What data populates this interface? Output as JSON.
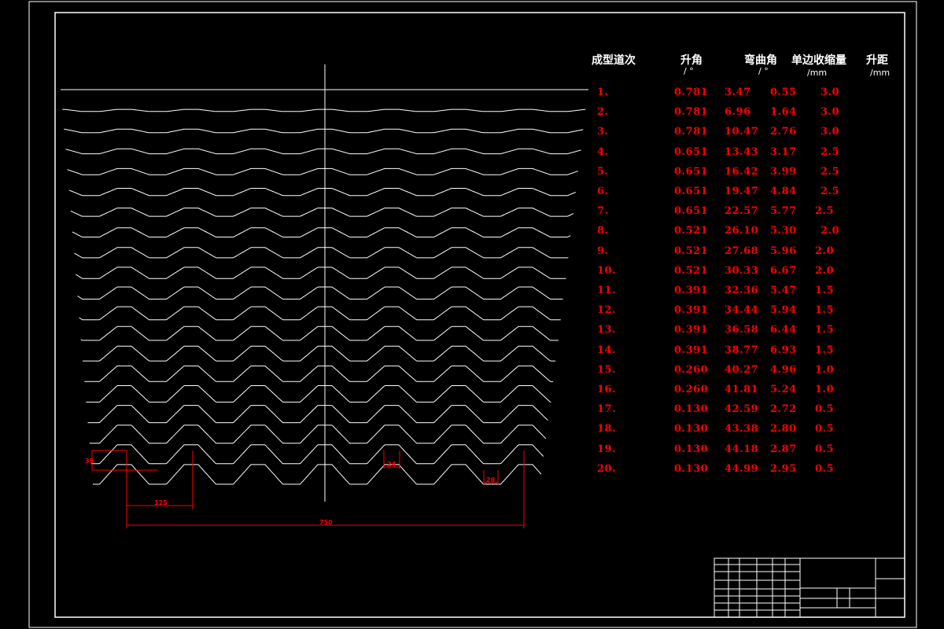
{
  "table": {
    "headers": {
      "pass": "成型道次",
      "lift_angle": "升角",
      "bend_angle": "弯曲角",
      "shrink": "单边收缩量",
      "lift": "升距"
    },
    "units": {
      "lift_angle": "/ °",
      "bend_angle": "/ °",
      "shrink": "/mm",
      "lift": "/mm"
    },
    "rows": [
      [
        "1.",
        "0.781",
        "3.47",
        "0.55",
        "3.0"
      ],
      [
        "2.",
        "0.781",
        "6.96",
        "1.64",
        "3.0"
      ],
      [
        "3.",
        "0.781",
        "10.47",
        "2.76",
        "3.0"
      ],
      [
        "4.",
        "0.651",
        "13.43",
        "3.17",
        "2.5"
      ],
      [
        "5.",
        "0.651",
        "16.42",
        "3.99",
        "2.5"
      ],
      [
        "6.",
        "0.651",
        "19.47",
        "4.84",
        "2.5"
      ],
      [
        "7.",
        "0.651",
        "22.57",
        "5.77",
        "2.5"
      ],
      [
        "8.",
        "0.521",
        "26.10",
        "5.30",
        "2.0"
      ],
      [
        "9.",
        "0.521",
        "27.68",
        "5.96",
        "2.0"
      ],
      [
        "10.",
        "0.521",
        "30.33",
        "6.67",
        "2.0"
      ],
      [
        "11.",
        "0.391",
        "32.36",
        "5.47",
        "1.5"
      ],
      [
        "12.",
        "0.391",
        "34.44",
        "5.94",
        "1.5"
      ],
      [
        "13.",
        "0.391",
        "36.58",
        "6.44",
        "1.5"
      ],
      [
        "14.",
        "0.391",
        "38.77",
        "6.93",
        "1.5"
      ],
      [
        "15.",
        "0.260",
        "40.27",
        "4.96",
        "1.0"
      ],
      [
        "16.",
        "0.260",
        "41.81",
        "5.24",
        "1.0"
      ],
      [
        "17.",
        "0.130",
        "42.59",
        "2.72",
        "0.5"
      ],
      [
        "18.",
        "0.130",
        "43.38",
        "2.80",
        "0.5"
      ],
      [
        "19.",
        "0.130",
        "44.18",
        "2.87",
        "0.5"
      ],
      [
        "20.",
        "0.130",
        "44.99",
        "2.95",
        "0.5"
      ]
    ]
  },
  "dimensions": {
    "height": "35",
    "pitch": "125",
    "top_width": "24",
    "bottom_width": "28",
    "total_width": "750"
  },
  "colors": {
    "background": "#000000",
    "lines": "#ffffff",
    "annotation": "#ff0000"
  }
}
